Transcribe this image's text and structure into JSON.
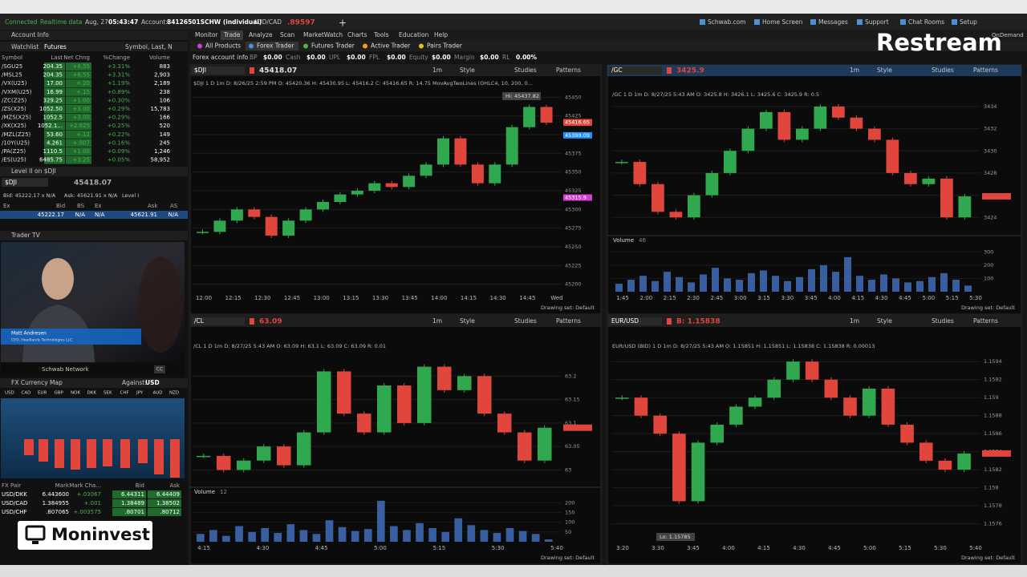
{
  "status": {
    "connection": "Connected",
    "feed": "Realtime data",
    "date": "Aug, 27",
    "time": "05:43:47",
    "account_label": "Account:",
    "account": "84126501SCHW (individual)",
    "pair": "AUD/CAD",
    "pair_price": ".89597",
    "links": [
      "Schwab.com",
      "Home Screen",
      "Messages",
      "Support",
      "Chat Rooms",
      "Setup"
    ],
    "ondemand": "OnDemand"
  },
  "menu": [
    "Monitor",
    "Trade",
    "Analyze",
    "Scan",
    "MarketWatch",
    "Charts",
    "Tools",
    "Education",
    "Help"
  ],
  "tabs": [
    "All Products",
    "Forex Trader",
    "Futures Trader",
    "Active Trader",
    "Pairs Trader"
  ],
  "account_info": {
    "title": "Forex account info",
    "fields": [
      [
        "BP",
        "$0.00"
      ],
      [
        "Cash",
        "$0.00"
      ],
      [
        "UPL",
        "$0.00"
      ],
      [
        "FPL",
        "$0.00"
      ],
      [
        "Equity",
        "$0.00"
      ],
      [
        "Margin",
        "$0.00"
      ],
      [
        "RL",
        "0.00%"
      ]
    ]
  },
  "left": {
    "account_title": "Account Info",
    "watchlist_title": "Watchlist",
    "watchlist_name": "Futures",
    "watchlist_search": "Symbol, Last, N",
    "watchlist_headers": [
      "Symbol",
      "Last",
      "Net Chng",
      "%Change",
      "Volume"
    ],
    "watchlist_rows": [
      [
        "/SGU25",
        "204.35",
        "+6.55",
        "+3.31%",
        "883"
      ],
      [
        "/MSL25",
        "204.35",
        "+6.55",
        "+3.31%",
        "2,903"
      ],
      [
        "/VX(U25)",
        "17.00",
        "+.20",
        "+1.19%",
        "2,189"
      ],
      [
        "/VXM(U25)",
        "16.99",
        "+.15",
        "+0.89%",
        "238"
      ],
      [
        "/ZC(Z25)",
        "329.25",
        "+1.00",
        "+0.30%",
        "106"
      ],
      [
        "/ZS(X25)",
        "1052.50",
        "+3.00",
        "+0.29%",
        "15,783"
      ],
      [
        "/MZS(X25)",
        "1052.5",
        "+3.00",
        "+0.29%",
        "166"
      ],
      [
        "/XK(X25)",
        "1052.1...",
        "+2.625",
        "+0.25%",
        "520"
      ],
      [
        "/MZL(Z25)",
        "53.60",
        "+.12",
        "+0.22%",
        "149"
      ],
      [
        "/10Y(U25)",
        "4.261",
        "+.007",
        "+0.16%",
        "245"
      ],
      [
        "/PA(Z25)",
        "1110.5",
        "+1.00",
        "+0.09%",
        "1,246"
      ],
      [
        "/ES(U25)",
        "6485.75",
        "+3.25",
        "+0.05%",
        "58,952"
      ]
    ],
    "level2_title": "Level II on $DJI",
    "level2_symbol": "$DJI",
    "level2_price": "45418.07",
    "level2_bid": "Bid: 45222.17 x N/A",
    "level2_ask": "Ask: 45621.91 x N/A",
    "level2_mode": "Level I",
    "level2_headers": [
      "Ex",
      "Bid",
      "BS",
      "Ex",
      "Ask",
      "AS"
    ],
    "level2_row": [
      "45222.17",
      "N/A",
      "N/A",
      "45621.91",
      "N/A"
    ],
    "tv_title": "Trader TV",
    "tv_name": "Matt Andresen",
    "tv_role": "CEO, Headlands Technologies LLC",
    "tv_channel": "Schwab Network",
    "tv_cc": "CC",
    "fx_title": "FX Currency Map",
    "fx_against": "Against:",
    "fx_base": "USD",
    "fx_currencies": [
      "USD",
      "CAD",
      "EUR",
      "GBP",
      "NOK",
      "DKK",
      "SEK",
      "CHF",
      "JPY",
      "AUD",
      "NZD"
    ],
    "fx_headers": [
      "FX Pair",
      "Mark",
      "Mark Cha...",
      "Bid",
      "Ask"
    ],
    "fx_rows": [
      [
        "USD/DKK",
        "6.443600",
        "+.03067",
        "6.44311",
        "6.44409"
      ],
      [
        "USD/CAD",
        "1.384955",
        "+.001",
        "1.38489",
        "1.38502"
      ],
      [
        "USD/CHF",
        ".807065",
        "+.003575",
        ".80701",
        ".80712"
      ]
    ]
  },
  "chart_toolbar": {
    "style": "Style",
    "studies": "Studies",
    "patterns": "Patterns",
    "interval": "1m",
    "drawing_set": "Drawing set: Default",
    "volume": "Volume"
  },
  "charts": [
    {
      "symbol": "$DJI",
      "price": "45418.07",
      "price_color": "#e0e0e0",
      "header": "$DJI 1 D 1m   D: 8/26/25 2:59 PM   O: 45420.36   H: 45430.95   L: 45416.2   C: 45416.65   R: 14.75   MovAvgTwoLines (OHLC4, 10, 200, 0...",
      "ylim": [
        45190,
        45460
      ],
      "yticks": [
        45200,
        45225,
        45250,
        45275,
        45300,
        45325,
        45350,
        45375,
        45400,
        45425,
        45450
      ],
      "xticks": [
        "12:00",
        "12:15",
        "12:30",
        "12:45",
        "13:00",
        "13:15",
        "13:30",
        "13:45",
        "14:00",
        "14:15",
        "14:30",
        "14:45",
        "Wed"
      ],
      "prices": [
        45270,
        45285,
        45300,
        45290,
        45265,
        45285,
        45300,
        45310,
        45320,
        45325,
        45335,
        45330,
        45345,
        45360,
        45395,
        45360,
        45335,
        45360,
        45410,
        45437,
        45416
      ],
      "tags": [
        {
          "value": 45416.65,
          "color": "#e0463c"
        },
        {
          "value": 45399.09,
          "color": "#1e90ff"
        },
        {
          "value": 45315.9,
          "color": "#d040d0"
        }
      ],
      "note": "Hi: 45437.82"
    },
    {
      "symbol": "/GC",
      "price": "3425.9",
      "price_color": "#e0463c",
      "header": "/GC 1 D 1m   D: 8/27/25 5:43 AM   O: 3425.8   H: 3426.1   L: 3425.6   C: 3425.9   R: 0.5",
      "ylim": [
        3422.5,
        3434.5
      ],
      "yticks": [
        3424,
        3426,
        3428,
        3430,
        3432,
        3434
      ],
      "xticks": [
        "1:45",
        "2:00",
        "2:15",
        "2:30",
        "2:45",
        "3:00",
        "3:15",
        "3:30",
        "3:45",
        "4:00",
        "4:15",
        "4:30",
        "4:45",
        "5:00",
        "5:15",
        "5:30"
      ],
      "prices": [
        3429,
        3427,
        3424.5,
        3424,
        3426,
        3428,
        3430,
        3432,
        3433.5,
        3431,
        3432,
        3434,
        3433,
        3432,
        3431,
        3428,
        3427,
        3427.5,
        3424,
        3425.9
      ],
      "volume_value": "46",
      "volume_lim": [
        0,
        350
      ],
      "volume_ticks": [
        100,
        200,
        300
      ],
      "volume": [
        60,
        90,
        120,
        80,
        150,
        110,
        70,
        130,
        180,
        100,
        90,
        140,
        160,
        120,
        80,
        110,
        170,
        200,
        150,
        260,
        120,
        90,
        130,
        100,
        70,
        80,
        110,
        140,
        90,
        46
      ]
    },
    {
      "symbol": "/CL",
      "price": "63.09",
      "price_color": "#e0463c",
      "header": "/CL 1 D 1m   D: 8/27/25 5:43 AM   O: 63.09   H: 63.1   L: 63.09   C: 63.09   R: 0.01",
      "ylim": [
        62.97,
        63.25
      ],
      "yticks": [
        63,
        63.05,
        63.1,
        63.15,
        63.2
      ],
      "xticks": [
        "4:15",
        "4:30",
        "4:45",
        "5:00",
        "5:15",
        "5:30",
        "5:40"
      ],
      "prices": [
        63.03,
        63.0,
        63.02,
        63.05,
        63.01,
        63.08,
        63.21,
        63.12,
        63.08,
        63.18,
        63.1,
        63.22,
        63.17,
        63.2,
        63.12,
        63.08,
        63.02,
        63.09
      ],
      "volume_value": "12",
      "volume_lim": [
        0,
        230
      ],
      "volume_ticks": [
        50,
        100,
        150,
        200
      ],
      "volume": [
        40,
        60,
        30,
        80,
        50,
        70,
        45,
        90,
        60,
        40,
        110,
        75,
        55,
        65,
        210,
        80,
        60,
        95,
        70,
        50,
        120,
        85,
        60,
        45,
        70,
        55,
        40,
        12
      ]
    },
    {
      "symbol": "EUR/USD",
      "price": "B: 1.15838",
      "price_color": "#e0463c",
      "header": "EUR/USD (BID) 1 D 1m   D: 8/27/25 5:43 AM   O: 1.15851   H: 1.15851   L: 1.15838   C: 1.15838   R: 0.00013",
      "ylim": [
        1.1574,
        1.1595
      ],
      "yticks": [
        1.1576,
        1.1578,
        1.158,
        1.1582,
        1.1584,
        1.1586,
        1.1588,
        1.159,
        1.1592,
        1.1594
      ],
      "xticks": [
        "3:20",
        "3:30",
        "3:45",
        "4:00",
        "4:15",
        "4:30",
        "4:45",
        "5:00",
        "5:15",
        "5:30",
        "5:40"
      ],
      "prices": [
        1.159,
        1.1588,
        1.1586,
        1.15785,
        1.1585,
        1.1587,
        1.1589,
        1.159,
        1.1592,
        1.1594,
        1.1592,
        1.159,
        1.1588,
        1.1591,
        1.1587,
        1.1585,
        1.1583,
        1.1582,
        1.15838
      ],
      "note": "Lo: 1.15785"
    }
  ],
  "overlays": {
    "restream": "Restream",
    "moninvest": "Moninvest"
  }
}
